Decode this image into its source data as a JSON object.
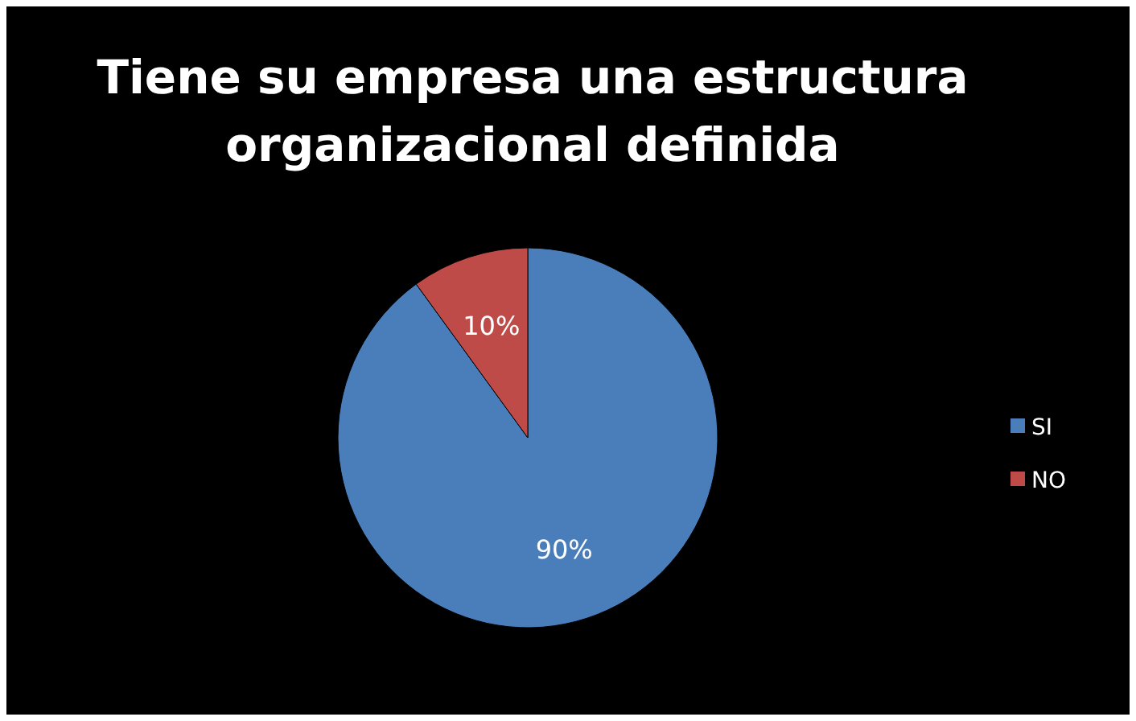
{
  "chart_data": {
    "type": "pie",
    "title": "Tiene su empresa una estructura organizacional definida",
    "categories": [
      "SI",
      "NO"
    ],
    "values": [
      90,
      10
    ],
    "colors": [
      "#4a7ebb",
      "#be4b48"
    ],
    "value_labels": [
      "90%",
      "10%"
    ],
    "legend": "right"
  }
}
